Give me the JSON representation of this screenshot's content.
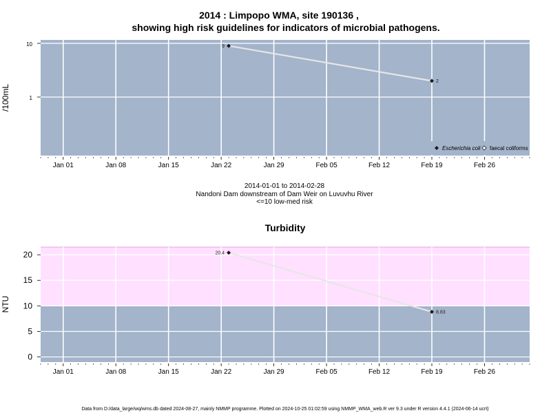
{
  "colors": {
    "panel_bg": "#a3b4cb",
    "guideline_band": "#ffe0ff",
    "grid": "#ffffff",
    "series_line": "#e6e6e6",
    "marker": "#1a1a1a",
    "band_border": "#dd88dd"
  },
  "chart_data": [
    {
      "type": "line",
      "title": "2014 : Limpopo WMA, site 190136 ,",
      "subtitle": "showing high risk guidelines for indicators of microbial pathogens.",
      "ylabel": "/100mL",
      "y_scale": "log",
      "y_ticks": [
        1,
        10
      ],
      "y_tick_labels": [
        "1",
        "10"
      ],
      "x_range": [
        "2013-12-29",
        "2014-03-04"
      ],
      "x_tick_dates": [
        "2014-01-01",
        "2014-01-08",
        "2014-01-15",
        "2014-01-22",
        "2014-01-29",
        "2014-02-05",
        "2014-02-12",
        "2014-02-19",
        "2014-02-26"
      ],
      "x_tick_labels": [
        "Jan 01",
        "Jan 08",
        "Jan 15",
        "Jan 22",
        "Jan 29",
        "Feb 05",
        "Feb 12",
        "Feb 19",
        "Feb 26"
      ],
      "grid": true,
      "legend_position": "bottom-right",
      "series": [
        {
          "name": "Escherichia coli",
          "marker": "filled-diamond",
          "points": [
            {
              "date": "2014-01-23",
              "value": 9,
              "label": "9"
            },
            {
              "date": "2014-02-19",
              "value": 2,
              "label": "2"
            }
          ]
        },
        {
          "name": "faecal coliforms",
          "marker": "open-diamond",
          "points": []
        }
      ],
      "notes": [
        "2014-01-01 to 2014-02-28",
        "Nandoni Dam downstream of Dam Weir on Luvuvhu River",
        "<=10 low-med risk"
      ]
    },
    {
      "type": "line",
      "title": "Turbidity",
      "ylabel": "NTU",
      "ylim": [
        -1,
        21.5
      ],
      "y_ticks": [
        0,
        5,
        10,
        15,
        20
      ],
      "y_tick_labels": [
        "0",
        "5",
        "10",
        "15",
        "20"
      ],
      "guideline_band": [
        10,
        21.5
      ],
      "x_range": [
        "2013-12-29",
        "2014-03-04"
      ],
      "x_tick_dates": [
        "2014-01-01",
        "2014-01-08",
        "2014-01-15",
        "2014-01-22",
        "2014-01-29",
        "2014-02-05",
        "2014-02-12",
        "2014-02-19",
        "2014-02-26"
      ],
      "x_tick_labels": [
        "Jan 01",
        "Jan 08",
        "Jan 15",
        "Jan 22",
        "Jan 29",
        "Feb 05",
        "Feb 12",
        "Feb 19",
        "Feb 26"
      ],
      "grid": true,
      "series": [
        {
          "name": "",
          "marker": "filled-diamond",
          "points": [
            {
              "date": "2014-01-23",
              "value": 20.4,
              "label": "20.4"
            },
            {
              "date": "2014-02-19",
              "value": 8.83,
              "label": "8.83"
            }
          ]
        }
      ]
    }
  ],
  "footer": "Data from D:/data_large/wq/wms.db dated 2024-08-27, mainly NMMP programme. Plotted on 2024-10-25 01:02:59 using NMMP_WMA_web.R ver 9.3 under R version 4.4.1 (2024-06-14 ucrt)"
}
